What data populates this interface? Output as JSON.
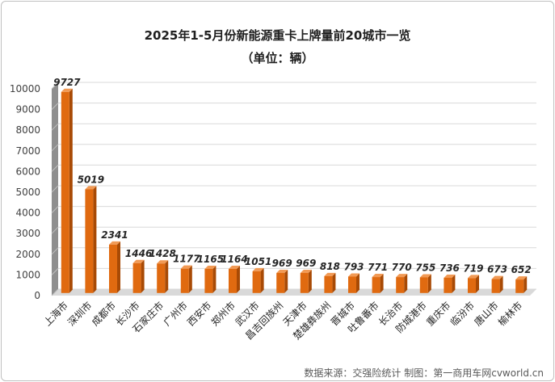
{
  "chart_data": {
    "type": "bar",
    "title": "2025年1-5月份新能源重卡上牌量前20城市一览",
    "subtitle": "（单位：辆）",
    "categories": [
      "上海市",
      "深圳市",
      "成都市",
      "长沙市",
      "石家庄市",
      "广州市",
      "西安市",
      "郑州市",
      "武汉市",
      "昌吉回族州",
      "天津市",
      "楚雄彝族州",
      "晋城市",
      "吐鲁番市",
      "长治市",
      "防城港市",
      "重庆市",
      "临汾市",
      "唐山市",
      "榆林市"
    ],
    "values": [
      9727,
      5019,
      2341,
      1446,
      1428,
      1177,
      1165,
      1164,
      1051,
      969,
      969,
      818,
      793,
      771,
      770,
      755,
      736,
      719,
      673,
      652
    ],
    "ylim": [
      0,
      10000
    ],
    "yticks": [
      0,
      1000,
      2000,
      3000,
      4000,
      5000,
      6000,
      7000,
      8000,
      9000,
      10000
    ],
    "grid": true,
    "bar_color": "#e06a10",
    "style": "3d"
  },
  "footer": {
    "source": "数据来源：交强险统计   制图：第一商用车网cvworld.cn"
  }
}
